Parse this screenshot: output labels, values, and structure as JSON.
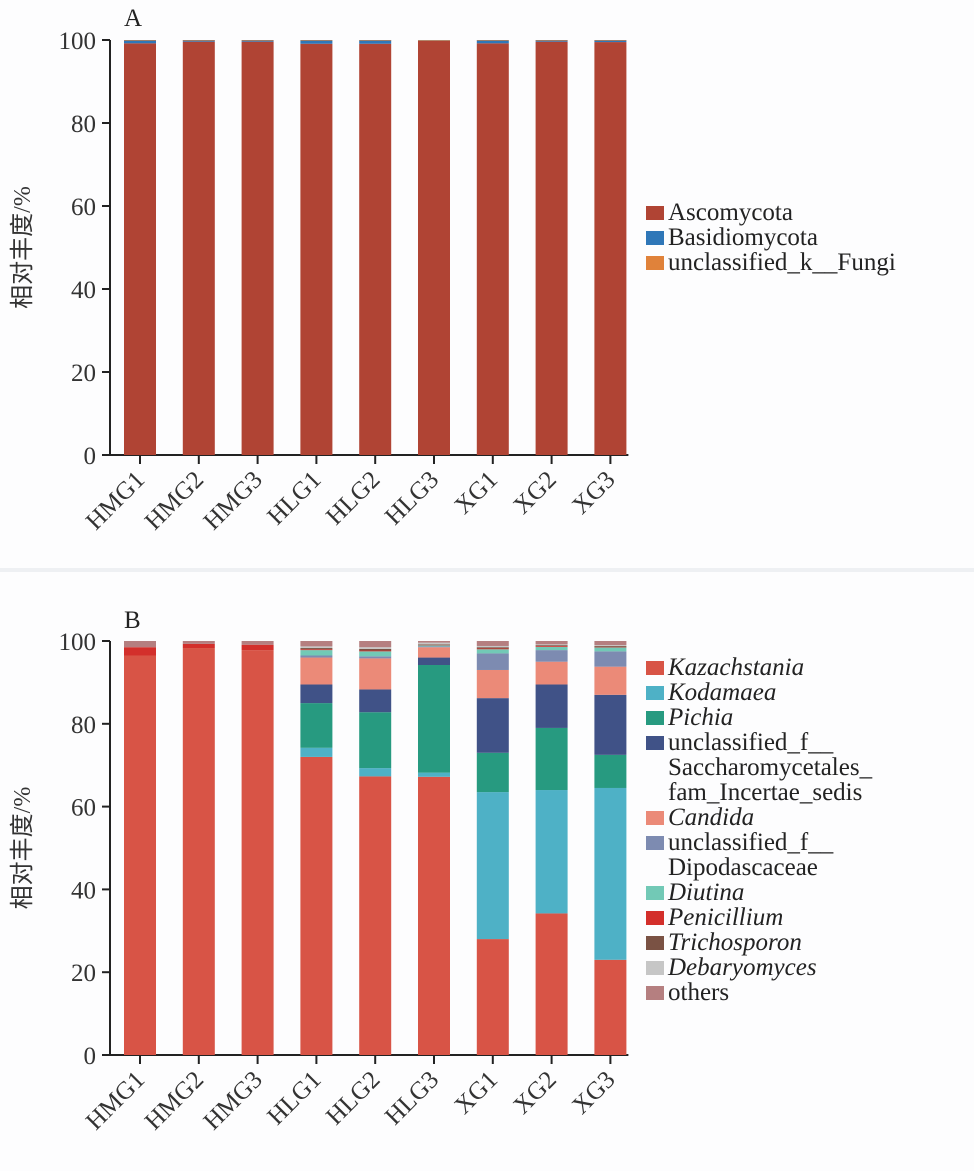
{
  "chart_data": [
    {
      "type": "bar",
      "stacked": true,
      "panel_label": "A",
      "title": "",
      "xlabel": "",
      "ylabel": "相对丰度/%",
      "ylim": [
        0,
        100
      ],
      "yticks": [
        "0",
        "20",
        "40",
        "60",
        "80",
        "100"
      ],
      "categories": [
        "HMG1",
        "HMG2",
        "HMG3",
        "HLG1",
        "HLG2",
        "HLG3",
        "XG1",
        "XG2",
        "XG3"
      ],
      "legend_position": "right",
      "series": [
        {
          "name": "Ascomycota",
          "italic": false,
          "color": "#b04434",
          "values": [
            99.2,
            99.6,
            99.6,
            99.1,
            99.1,
            99.8,
            99.2,
            99.6,
            99.5
          ]
        },
        {
          "name": "Basidiomycota",
          "italic": false,
          "color": "#2f77b8",
          "values": [
            0.7,
            0.35,
            0.3,
            0.8,
            0.85,
            0.15,
            0.7,
            0.35,
            0.45
          ]
        },
        {
          "name": "unclassified_k__Fungi",
          "italic": false,
          "color": "#e0823a",
          "values": [
            0.1,
            0.05,
            0.1,
            0.1,
            0.05,
            0.05,
            0.1,
            0.05,
            0.05
          ]
        }
      ]
    },
    {
      "type": "bar",
      "stacked": true,
      "panel_label": "B",
      "title": "",
      "xlabel": "",
      "ylabel": "相对丰度/%",
      "ylim": [
        0,
        100
      ],
      "yticks": [
        "0",
        "20",
        "40",
        "60",
        "80",
        "100"
      ],
      "categories": [
        "HMG1",
        "HMG2",
        "HMG3",
        "HLG1",
        "HLG2",
        "HLG3",
        "XG1",
        "XG2",
        "XG3"
      ],
      "legend_position": "right",
      "series": [
        {
          "name": "Kazachstania",
          "italic": true,
          "color": "#d85446",
          "values": [
            96.5,
            98.3,
            97.8,
            72.0,
            67.3,
            67.2,
            28.0,
            34.2,
            23.0
          ]
        },
        {
          "name": "Kodamaea",
          "italic": true,
          "color": "#4eb1c6",
          "values": [
            0.0,
            0.0,
            0.0,
            2.2,
            2.0,
            1.0,
            35.5,
            29.8,
            41.5
          ]
        },
        {
          "name": "Pichia",
          "italic": true,
          "color": "#279a80",
          "values": [
            0.0,
            0.0,
            0.0,
            10.8,
            13.5,
            26.0,
            9.5,
            15.0,
            8.0
          ]
        },
        {
          "name": "unclassified_f__\nSaccharomycetales_\nfam_Incertae_sedis",
          "italic": false,
          "color": "#405287",
          "values": [
            0.0,
            0.0,
            0.0,
            4.5,
            5.5,
            1.8,
            13.2,
            10.5,
            14.5
          ]
        },
        {
          "name": "Candida",
          "italic": true,
          "color": "#eb8a78",
          "values": [
            0.0,
            0.0,
            0.0,
            6.5,
            7.5,
            2.5,
            6.8,
            5.5,
            6.8
          ]
        },
        {
          "name": "unclassified_f__\nDipodascaceae",
          "italic": false,
          "color": "#7d8bb1",
          "values": [
            0.0,
            0.0,
            0.0,
            0.5,
            0.5,
            0.2,
            4.0,
            2.8,
            3.7
          ]
        },
        {
          "name": "Diutina",
          "italic": true,
          "color": "#72c9b6",
          "values": [
            0.0,
            0.0,
            0.0,
            1.3,
            1.2,
            0.3,
            1.0,
            0.8,
            1.0
          ]
        },
        {
          "name": "Penicillium",
          "italic": true,
          "color": "#d32f2b",
          "values": [
            2.0,
            1.0,
            1.3,
            0.2,
            0.2,
            0.1,
            0.2,
            0.2,
            0.1
          ]
        },
        {
          "name": "Trichosporon",
          "italic": true,
          "color": "#7a5244",
          "values": [
            0.0,
            0.0,
            0.0,
            0.3,
            0.4,
            0.1,
            0.3,
            0.2,
            0.2
          ]
        },
        {
          "name": "Debaryomyces",
          "italic": true,
          "color": "#c6c6c6",
          "values": [
            0.0,
            0.0,
            0.0,
            0.4,
            0.4,
            0.4,
            0.3,
            0.2,
            0.2
          ]
        },
        {
          "name": "others",
          "italic": false,
          "color": "#b57f80",
          "values": [
            1.5,
            0.7,
            0.9,
            1.3,
            1.5,
            0.4,
            1.2,
            0.8,
            1.0
          ]
        }
      ]
    }
  ]
}
